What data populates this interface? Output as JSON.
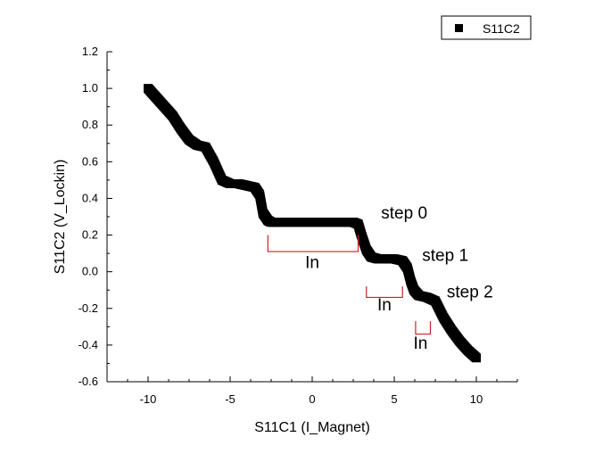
{
  "chart_data": {
    "type": "scatter",
    "xlabel": "S11C1 (I_Magnet)",
    "ylabel": "S11C2 (V_Lockin)",
    "xlim": [
      -12.5,
      12.5
    ],
    "ylim": [
      -0.6,
      1.2
    ],
    "xticks": [
      -10,
      -5,
      0,
      5,
      10
    ],
    "yticks": [
      -0.6,
      -0.4,
      -0.2,
      0.0,
      0.2,
      0.4,
      0.6,
      0.8,
      1.0,
      1.2
    ],
    "xtick_labels": [
      "-10",
      "-5",
      "0",
      "5",
      "10"
    ],
    "ytick_labels": [
      "-0.6",
      "-0.4",
      "-0.2",
      "0.0",
      "0.2",
      "0.4",
      "0.6",
      "0.8",
      "1.0",
      "1.2"
    ],
    "grid": false,
    "legend_position": "top-right",
    "series": [
      {
        "name": "S11C2",
        "color": "#000000",
        "marker": "square",
        "x": [
          -10.0,
          -9.5,
          -9.0,
          -8.5,
          -8.0,
          -7.5,
          -7.0,
          -6.5,
          -6.0,
          -5.5,
          -5.0,
          -4.5,
          -4.0,
          -3.5,
          -3.2,
          -3.0,
          -2.7,
          -2.5,
          -2.0,
          -1.0,
          0.0,
          1.0,
          2.0,
          2.5,
          2.8,
          3.0,
          3.3,
          3.6,
          4.0,
          4.5,
          5.0,
          5.5,
          5.8,
          6.0,
          6.2,
          6.5,
          7.0,
          7.5,
          8.0,
          8.5,
          9.0,
          9.5,
          10.0
        ],
        "y": [
          1.0,
          0.95,
          0.9,
          0.85,
          0.78,
          0.72,
          0.69,
          0.68,
          0.6,
          0.5,
          0.48,
          0.48,
          0.47,
          0.46,
          0.42,
          0.32,
          0.28,
          0.27,
          0.27,
          0.27,
          0.27,
          0.27,
          0.27,
          0.27,
          0.26,
          0.2,
          0.12,
          0.08,
          0.07,
          0.07,
          0.07,
          0.06,
          0.02,
          -0.05,
          -0.1,
          -0.13,
          -0.14,
          -0.16,
          -0.25,
          -0.32,
          -0.38,
          -0.43,
          -0.47
        ]
      }
    ],
    "annotations": [
      {
        "text": "step 0",
        "x": 4.2,
        "y": 0.29
      },
      {
        "text": "step 1",
        "x": 6.7,
        "y": 0.06
      },
      {
        "text": "step 2",
        "x": 8.2,
        "y": -0.14
      },
      {
        "text": "In",
        "x": 0.0,
        "y": 0.02
      },
      {
        "text": "In",
        "x": 4.4,
        "y": -0.21
      },
      {
        "text": "In",
        "x": 6.6,
        "y": -0.42
      }
    ],
    "brackets": [
      {
        "x1": -2.7,
        "x2": 2.8,
        "y_top": 0.2,
        "y_bottom": 0.11,
        "color": "#cc2222"
      },
      {
        "x1": 3.3,
        "x2": 5.5,
        "y_top": -0.08,
        "y_bottom": -0.14,
        "color": "#cc2222"
      },
      {
        "x1": 6.3,
        "x2": 7.2,
        "y_top": -0.27,
        "y_bottom": -0.34,
        "color": "#cc2222"
      }
    ]
  }
}
